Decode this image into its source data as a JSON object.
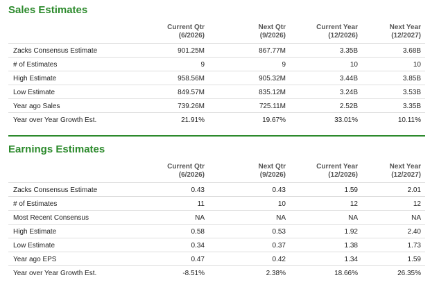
{
  "sales": {
    "title": "Sales Estimates",
    "headers": [
      {
        "line1": "Current Qtr",
        "line2": "(6/2026)"
      },
      {
        "line1": "Next Qtr",
        "line2": "(9/2026)"
      },
      {
        "line1": "Current Year",
        "line2": "(12/2026)"
      },
      {
        "line1": "Next Year",
        "line2": "(12/2027)"
      }
    ],
    "rows": [
      {
        "label": "Zacks Consensus Estimate",
        "v": [
          "901.25M",
          "867.77M",
          "3.35B",
          "3.68B"
        ]
      },
      {
        "label": "# of Estimates",
        "v": [
          "9",
          "9",
          "10",
          "10"
        ]
      },
      {
        "label": "High Estimate",
        "v": [
          "958.56M",
          "905.32M",
          "3.44B",
          "3.85B"
        ]
      },
      {
        "label": "Low Estimate",
        "v": [
          "849.57M",
          "835.12M",
          "3.24B",
          "3.53B"
        ]
      },
      {
        "label": "Year ago Sales",
        "v": [
          "739.26M",
          "725.11M",
          "2.52B",
          "3.35B"
        ]
      },
      {
        "label": "Year over Year Growth Est.",
        "v": [
          "21.91%",
          "19.67%",
          "33.01%",
          "10.11%"
        ]
      }
    ]
  },
  "earnings": {
    "title": "Earnings Estimates",
    "headers": [
      {
        "line1": "Current Qtr",
        "line2": "(6/2026)"
      },
      {
        "line1": "Next Qtr",
        "line2": "(9/2026)"
      },
      {
        "line1": "Current Year",
        "line2": "(12/2026)"
      },
      {
        "line1": "Next Year",
        "line2": "(12/2027)"
      }
    ],
    "rows": [
      {
        "label": "Zacks Consensus Estimate",
        "v": [
          "0.43",
          "0.43",
          "1.59",
          "2.01"
        ]
      },
      {
        "label": "# of Estimates",
        "v": [
          "11",
          "10",
          "12",
          "12"
        ]
      },
      {
        "label": "Most Recent Consensus",
        "v": [
          "NA",
          "NA",
          "NA",
          "NA"
        ]
      },
      {
        "label": "High Estimate",
        "v": [
          "0.58",
          "0.53",
          "1.92",
          "2.40"
        ]
      },
      {
        "label": "Low Estimate",
        "v": [
          "0.34",
          "0.37",
          "1.38",
          "1.73"
        ]
      },
      {
        "label": "Year ago EPS",
        "v": [
          "0.47",
          "0.42",
          "1.34",
          "1.59"
        ]
      },
      {
        "label": "Year over Year Growth Est.",
        "v": [
          "-8.51%",
          "2.38%",
          "18.66%",
          "26.35%"
        ]
      }
    ]
  },
  "colors": {
    "accent": "#2c8a2c",
    "row_border": "#dddddd"
  }
}
